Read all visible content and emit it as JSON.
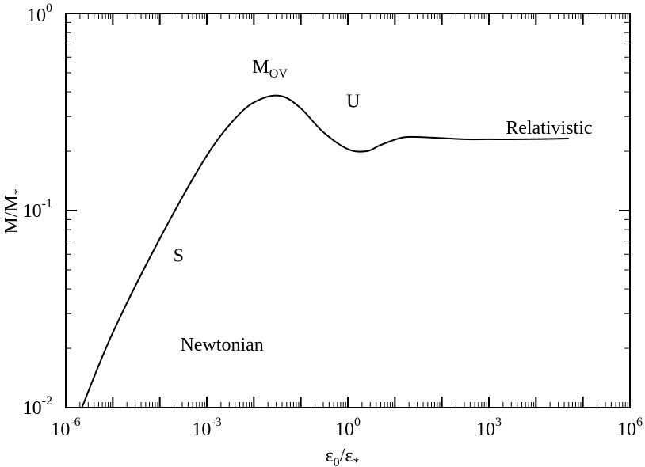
{
  "chart_data": {
    "type": "line",
    "x_scale": "log",
    "y_scale": "log",
    "xlim": [
      1e-06,
      1000000.0
    ],
    "ylim": [
      0.01,
      1
    ],
    "xlabel": {
      "main": "ε",
      "sub": "0",
      "mid": "/ε",
      "sub2": "*"
    },
    "ylabel": {
      "main": "M/M",
      "sub": "*"
    },
    "x_ticks": [
      {
        "base": "10",
        "exp": "-6",
        "value": 1e-06
      },
      {
        "base": "10",
        "exp": "-3",
        "value": 0.001
      },
      {
        "base": "10",
        "exp": "0",
        "value": 1
      },
      {
        "base": "10",
        "exp": "3",
        "value": 1000.0
      },
      {
        "base": "10",
        "exp": "6",
        "value": 1000000.0
      }
    ],
    "y_ticks": [
      {
        "base": "10",
        "exp": "-2",
        "value": 0.01
      },
      {
        "base": "10",
        "exp": "-1",
        "value": 0.1
      },
      {
        "base": "10",
        "exp": "0",
        "value": 1
      }
    ],
    "grid": false,
    "series": [
      {
        "color": "#000000",
        "x": [
          2.2e-06,
          1e-05,
          0.0001,
          0.001,
          0.005,
          0.015,
          0.04,
          0.1,
          0.3,
          1,
          2.5,
          5,
          15,
          50,
          300,
          1000,
          5000,
          50000
        ],
        "y": [
          0.01,
          0.024,
          0.072,
          0.19,
          0.31,
          0.37,
          0.38,
          0.33,
          0.25,
          0.205,
          0.2,
          0.215,
          0.235,
          0.235,
          0.23,
          0.23,
          0.23,
          0.232
        ]
      }
    ],
    "annotations": [
      {
        "main": "M",
        "sub": "OV",
        "x": 0.022,
        "y": 0.5
      },
      {
        "main": "U",
        "sub": "",
        "x": 1.3,
        "y": 0.335
      },
      {
        "main": "Relativistic",
        "sub": "",
        "x": 19000,
        "y": 0.245
      },
      {
        "main": "S",
        "sub": "",
        "x": 0.00025,
        "y": 0.055
      },
      {
        "main": "Newtonian",
        "sub": "",
        "x": 0.0021,
        "y": 0.0195
      }
    ]
  }
}
